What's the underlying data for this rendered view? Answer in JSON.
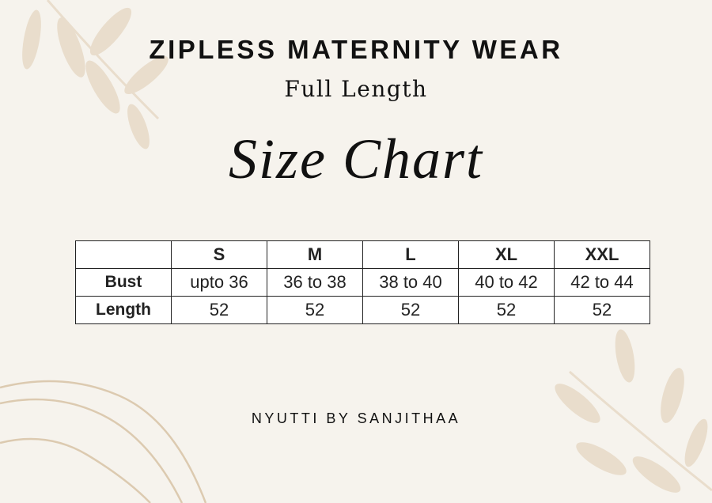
{
  "title": "ZIPLESS MATERNITY WEAR",
  "subtitle": "Full Length",
  "script_title": "Size Chart",
  "table": {
    "headers": [
      "",
      "S",
      "M",
      "L",
      "XL",
      "XXL"
    ],
    "rows": [
      {
        "label": "Bust",
        "values": [
          "upto 36",
          "36 to 38",
          "38 to 40",
          "40 to 42",
          "42 to 44"
        ]
      },
      {
        "label": "Length",
        "values": [
          "52",
          "52",
          "52",
          "52",
          "52"
        ]
      }
    ]
  },
  "footer": "NYUTTI BY SANJITHAA"
}
